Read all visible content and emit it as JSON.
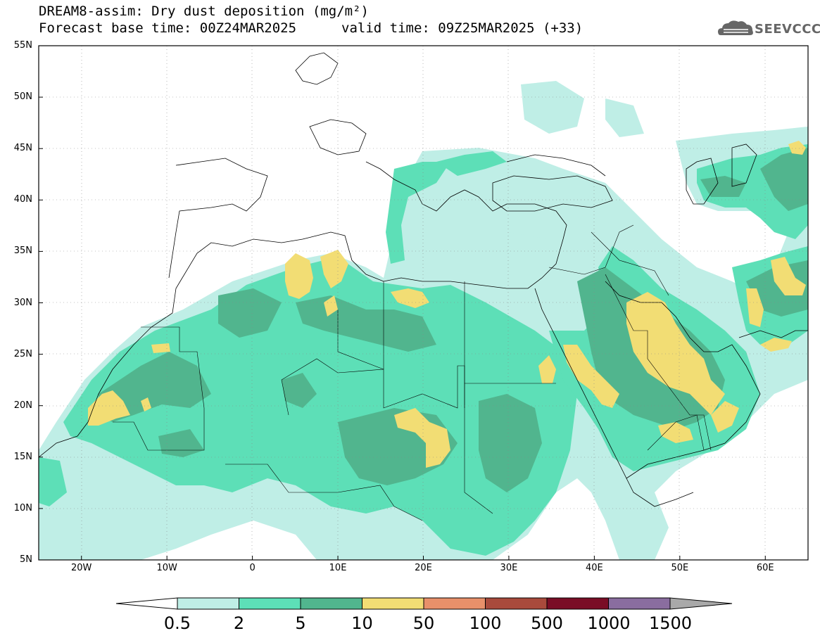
{
  "title": {
    "line1": "DREAM8-assim: Dry dust deposition (mg/m²)",
    "line2_left": "Forecast base time: 00Z24MAR2025",
    "line2_right": "valid time: 09Z25MAR2025 (+33)"
  },
  "logo": {
    "text": "SEEVCCC",
    "icon": "cloud-logo-icon"
  },
  "map": {
    "lat_labels": [
      "55N",
      "50N",
      "45N",
      "40N",
      "35N",
      "30N",
      "25N",
      "20N",
      "15N",
      "10N",
      "5N"
    ],
    "lon_labels": [
      "20W",
      "10W",
      "0",
      "10E",
      "20E",
      "30E",
      "40E",
      "50E",
      "60E"
    ],
    "lat_range": [
      5,
      55
    ],
    "lon_range": [
      -25,
      65
    ],
    "grid": true
  },
  "legend": {
    "levels": [
      "0.5",
      "2",
      "5",
      "10",
      "50",
      "100",
      "500",
      "1000",
      "1500"
    ],
    "colors": [
      "#bfeee6",
      "#5ddfb7",
      "#51b58e",
      "#f2dd74",
      "#e8906a",
      "#a94a3c",
      "#7a0d26",
      "#8a6d9f",
      "#a9a9a9"
    ]
  }
}
